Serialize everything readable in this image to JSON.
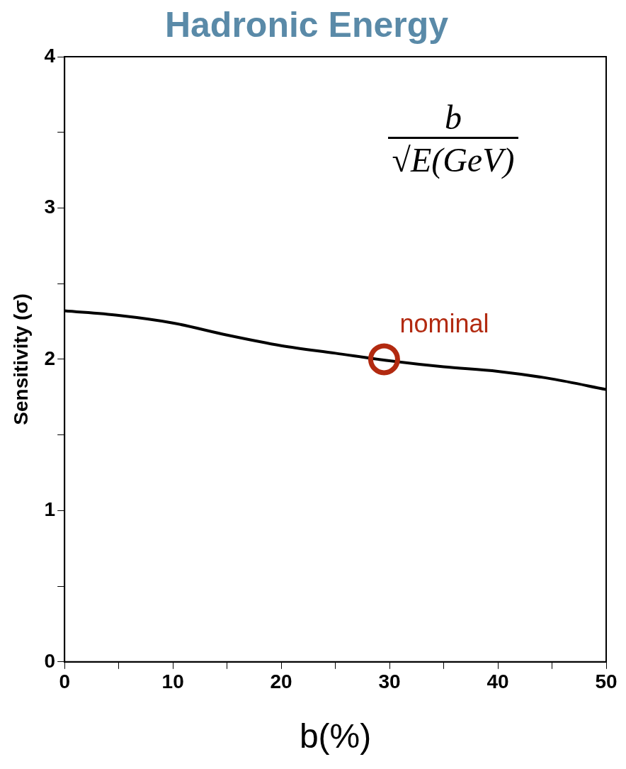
{
  "chart_data": {
    "type": "line",
    "title": "Hadronic Energy",
    "xlabel": "b(%)",
    "ylabel": "Sensitivity (σ)",
    "xlim": [
      0,
      50
    ],
    "xticks": [
      0,
      10,
      20,
      30,
      40,
      50
    ],
    "ylim": [
      0,
      4
    ],
    "yticks": [
      0,
      1,
      2,
      3,
      4
    ],
    "grid": false,
    "legend": false,
    "marker": "none",
    "line_style": "solid",
    "series": [
      {
        "color": "#000000",
        "x": [
          0,
          5,
          10,
          15,
          20,
          25,
          30,
          35,
          40,
          45,
          50
        ],
        "values": [
          2.32,
          2.29,
          2.24,
          2.16,
          2.09,
          2.04,
          1.99,
          1.95,
          1.92,
          1.87,
          1.8
        ]
      },
      {
        "type": "scatter",
        "color": "#b22a10",
        "marker": "circle",
        "x": [
          29.5
        ],
        "values": [
          2.0
        ]
      }
    ],
    "annotations": [
      "b",
      "√E(GeV)",
      {
        "text": "nominal",
        "x": 29.5,
        "y": 2.0
      }
    ]
  }
}
